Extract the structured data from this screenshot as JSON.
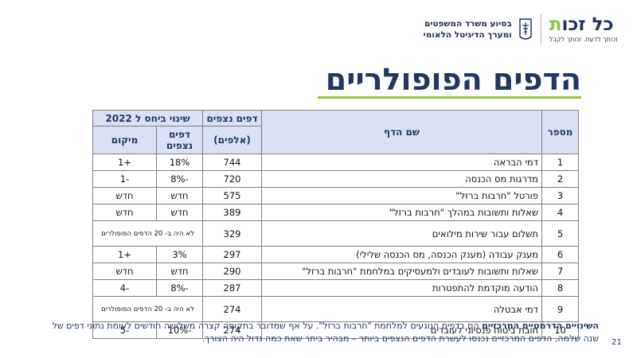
{
  "header": {
    "logo_main": "כל זכו",
    "logo_accent": "ת",
    "logo_tagline": "זכותך לדעת. זכותך לקבל",
    "partner_line1": "בסיוע משרד המשפטים",
    "partner_line2": "ומערך הדיגיטל הלאומי"
  },
  "title": "הדפים הפופולריים",
  "table": {
    "headers": {
      "number": "מספר",
      "page": "שם הדף",
      "views_top": "דפים נצפים",
      "views_bottom": "(אלפים)",
      "change_group": "שינוי ביחס ל 2022",
      "change_views": "דפים נצפים",
      "change_rank": "מיקום"
    },
    "rows": [
      {
        "num": "1",
        "page": "דמי הבראה",
        "views": "744",
        "change_views": "18%",
        "change_rank": "+1"
      },
      {
        "num": "2",
        "page": "מדרגות מס הכנסה",
        "views": "720",
        "change_views": "-8%",
        "change_rank": "-1"
      },
      {
        "num": "3",
        "page": "פורטל \"חרבות ברזל\"",
        "views": "575",
        "change_views": "חדש",
        "change_rank": "חדש"
      },
      {
        "num": "4",
        "page": "שאלות ותשובות במהלך \"חרבות ברזל\"",
        "views": "389",
        "change_views": "חדש",
        "change_rank": "חדש"
      },
      {
        "num": "5",
        "page": "תשלום עבור שירות מילואים",
        "views": "329",
        "change_merged": "לא היה ב- 20 הדפים הפופולרים"
      },
      {
        "num": "6",
        "page": "מענק עבודה (מענק הכנסה, מס הכנסה שלילי)",
        "views": "297",
        "change_views": "3%",
        "change_rank": "+1"
      },
      {
        "num": "7",
        "page": "שאלות ותשובות לעובדים ולמעסיקים במלחמת \"חרבות ברזל\"",
        "views": "290",
        "change_views": "חדש",
        "change_rank": "חדש"
      },
      {
        "num": "8",
        "page": "הודעה מוקדמת להתפטרות",
        "views": "287",
        "change_views": "-8%",
        "change_rank": "-4"
      },
      {
        "num": "9",
        "page": "דמי אבטלה",
        "views": "274",
        "change_merged": "לא היה ב- 20 הדפים הפופולרים"
      },
      {
        "num": "10",
        "page": "חובת ביטוח פנסיוני לעובדים",
        "views": "274",
        "change_views": "-10%",
        "change_rank": "-5"
      }
    ]
  },
  "note": {
    "bold": "השינויים הדרמטיים המרכזיים",
    "text": " הם בדפים הנוגעים למלחמת \"חרבות ברזל\". על אף שמדובר בתקופה קצרה משלושה חודשים לעומת נתוני דפים של שנה שלמה, הדפים המרכזיים נכנסו לעשרת הדפים הנצפים ביותר – מבהיר ביתר שאת כמה גדול היה הצורך."
  },
  "page_number": "21",
  "colors": {
    "navy": "#1f3763",
    "green": "#8cc63f",
    "header_fill": "#d9e1f2"
  }
}
